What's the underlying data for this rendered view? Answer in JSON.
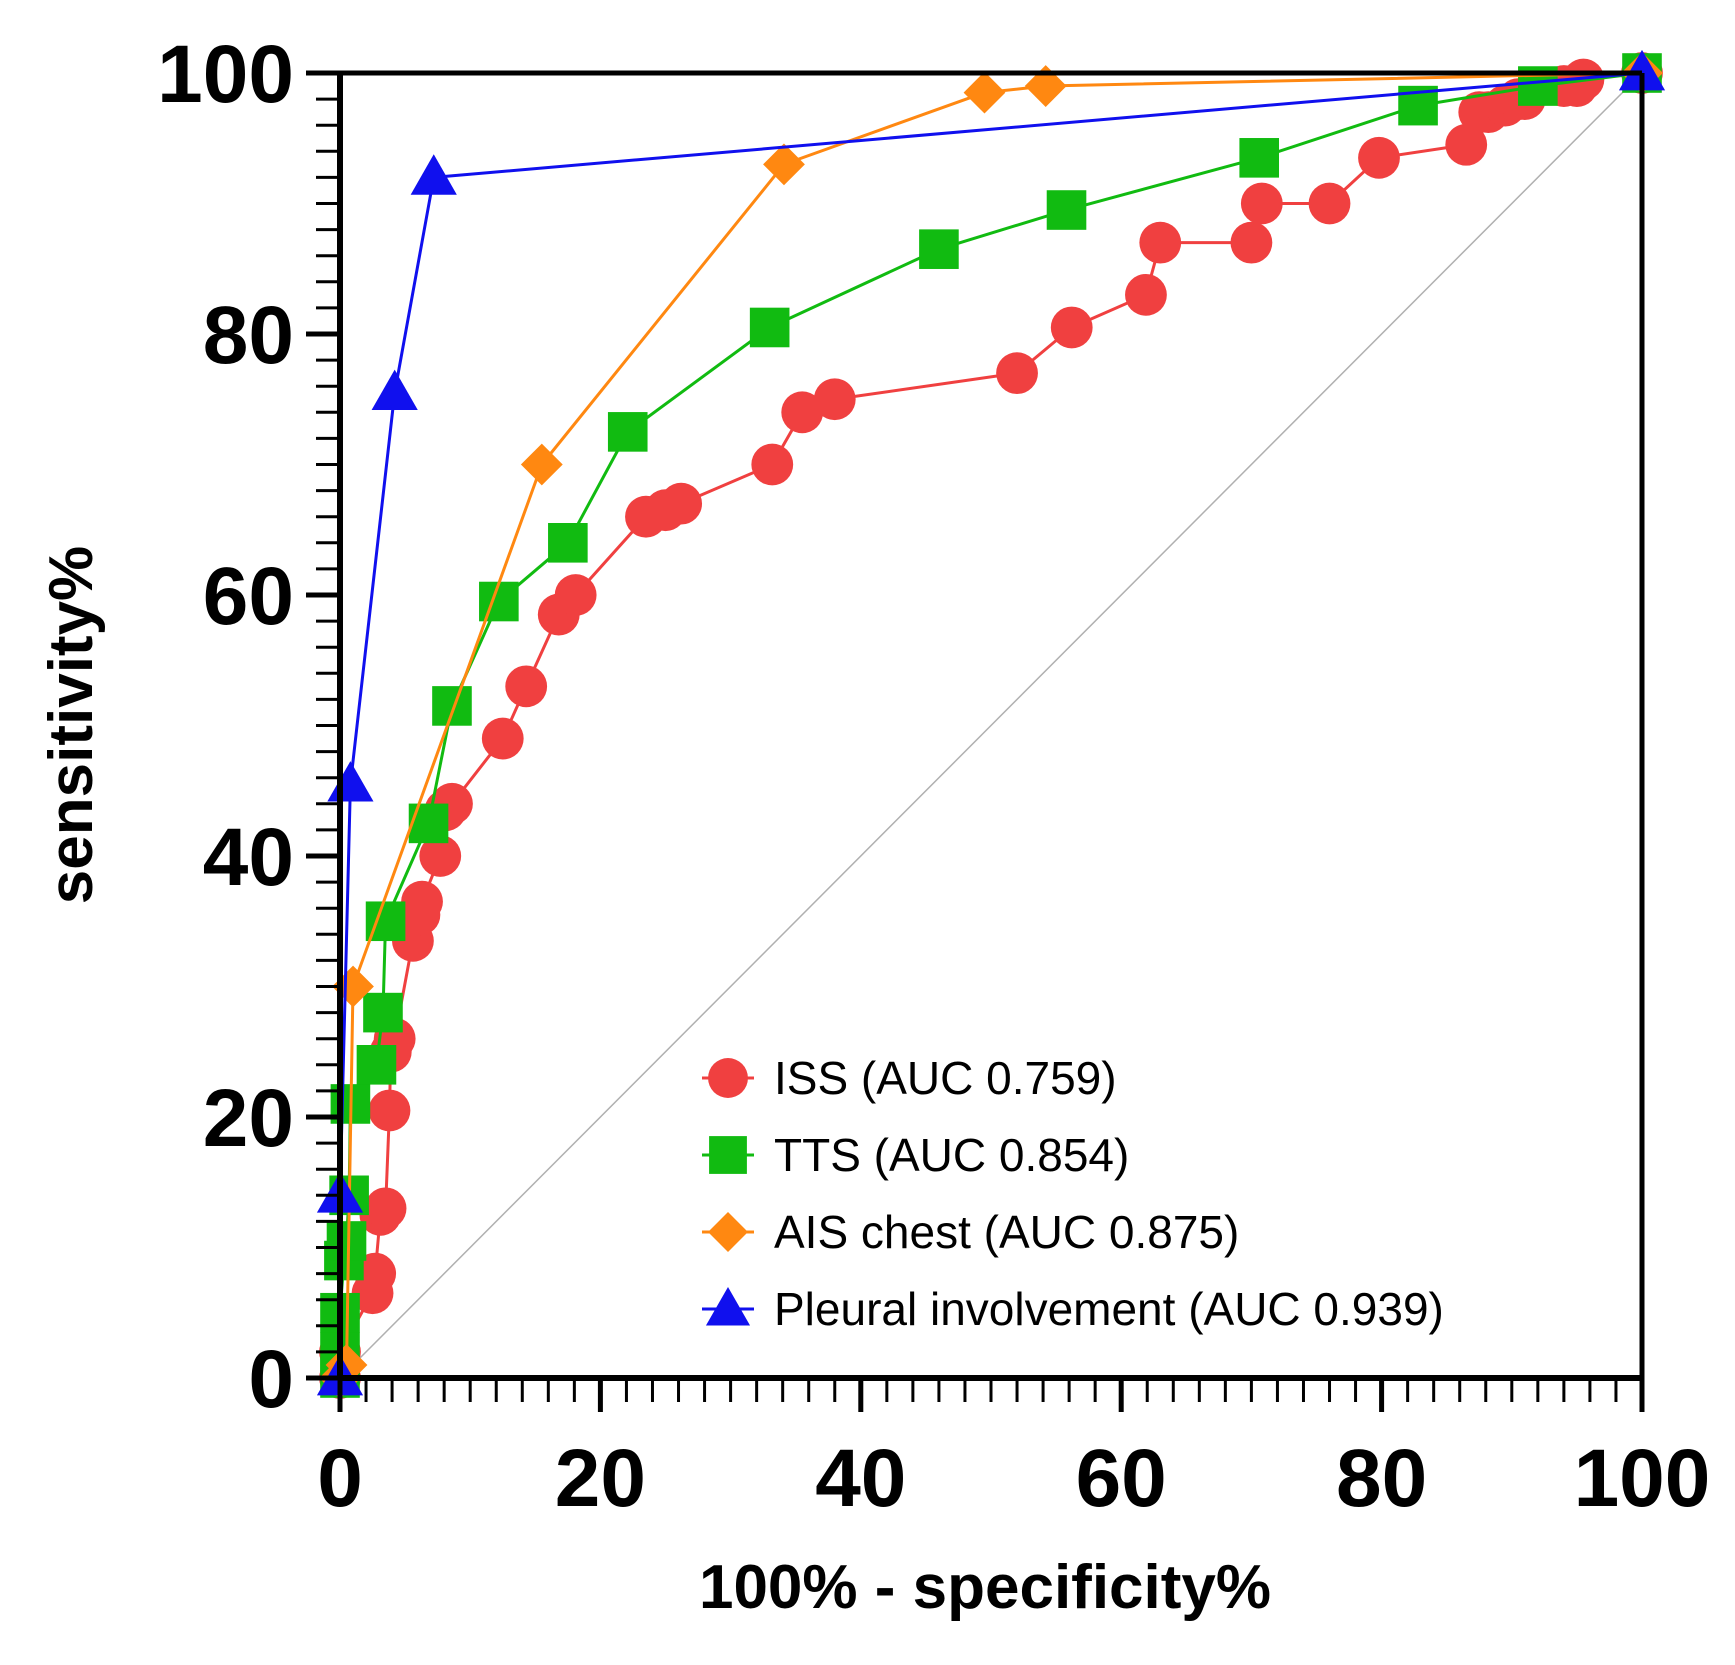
{
  "chart_data": {
    "type": "line",
    "title": "",
    "xlabel": "100% - specificity%",
    "ylabel": "sensitivity%",
    "xlim": [
      0,
      100
    ],
    "ylim": [
      0,
      100
    ],
    "x_ticks": [
      0,
      20,
      40,
      60,
      80,
      100
    ],
    "y_ticks": [
      0,
      20,
      40,
      60,
      80,
      100
    ],
    "grid": false,
    "legend_position": "bottom-right",
    "reference_line": {
      "from": [
        0,
        0
      ],
      "to": [
        100,
        100
      ],
      "color": "#b0b0b0"
    },
    "series": [
      {
        "name": "ISS (AUC 0.759)",
        "color": "#f04040",
        "marker": "circle",
        "x": [
          0,
          0,
          2.5,
          2.7,
          3.1,
          3.5,
          3.8,
          3.9,
          4.2,
          5.6,
          6.1,
          6.3,
          7.7,
          8.1,
          8.6,
          12.5,
          14.3,
          16.8,
          18.1,
          23.5,
          25.0,
          26.2,
          33.2,
          35.5,
          38.0,
          52.0,
          56.2,
          61.9,
          63.0,
          70.0,
          70.8,
          76.0,
          79.8,
          86.5,
          87.5,
          88.2,
          89.5,
          90.5,
          91.0,
          94.0,
          95.0,
          95.5,
          100
        ],
        "y": [
          0,
          2,
          6.5,
          8,
          12.5,
          13,
          20.5,
          25,
          26,
          33.5,
          35.5,
          36.5,
          40,
          43.5,
          44,
          49,
          53,
          58.5,
          60,
          66,
          66.5,
          67,
          70,
          74,
          75,
          77,
          80.5,
          83,
          87,
          87,
          90,
          90,
          93.5,
          94.5,
          97,
          97,
          97.5,
          98,
          98,
          99,
          99,
          99.5,
          100
        ]
      },
      {
        "name": "TTS (AUC 0.854)",
        "color": "#11bb11",
        "marker": "square",
        "x": [
          0,
          0,
          0,
          0.3,
          0.5,
          0.7,
          0.8,
          2.8,
          3.3,
          3.5,
          6.8,
          8.6,
          12.2,
          17.5,
          22.1,
          33.0,
          46.0,
          55.8,
          70.6,
          82.8,
          92.0,
          100
        ],
        "y": [
          0,
          2,
          5,
          9,
          10.5,
          14,
          21,
          24,
          28,
          35,
          42.5,
          51.5,
          59.5,
          64,
          72.5,
          80.5,
          86.5,
          89.5,
          93.5,
          97.5,
          99,
          100
        ]
      },
      {
        "name": "AIS chest (AUC 0.875)",
        "color": "#ff8811",
        "marker": "diamond",
        "x": [
          0,
          0.5,
          1.0,
          15.5,
          34.1,
          49.5,
          54.2,
          100
        ],
        "y": [
          0,
          1,
          30,
          70,
          93,
          98.5,
          99,
          100
        ]
      },
      {
        "name": "Pleural involvement (AUC 0.939)",
        "color": "#1010ee",
        "marker": "triangle",
        "x": [
          0,
          0,
          0.8,
          4.2,
          7.2,
          100
        ],
        "y": [
          0,
          14,
          45.5,
          75.5,
          92,
          100
        ]
      }
    ]
  }
}
